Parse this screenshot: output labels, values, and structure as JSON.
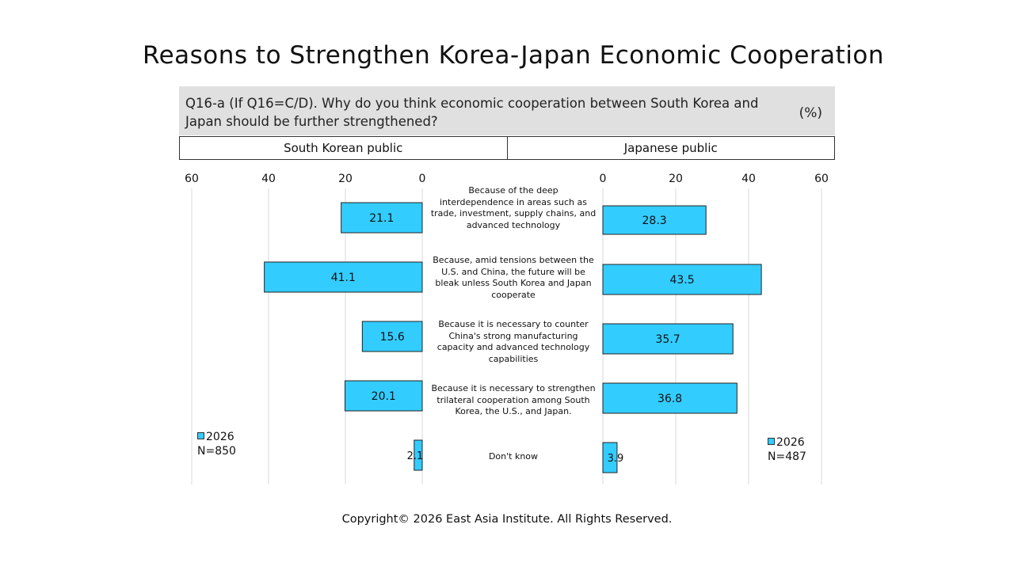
{
  "title": "Reasons to Strengthen Korea-Japan Economic Cooperation",
  "question": "Q16-a (If Q16=C/D). Why do you think economic cooperation between South Korea and Japan should be further strengthened?",
  "unit": "(%)",
  "left_header": "South Korean public",
  "right_header": "Japanese public",
  "footer": "Copyright© 2026 East Asia Institute. All Rights Reserved.",
  "colors": {
    "bar": "#33ccff",
    "bar_border": "#222222",
    "header_bg": "#e0e0e0",
    "grid": "#d9d9d9"
  },
  "legend_left": {
    "series": "2026",
    "n": "N=850"
  },
  "legend_right": {
    "series": "2026",
    "n": "N=487"
  },
  "chart_data": {
    "type": "bar",
    "orientation": "horizontal",
    "categories": [
      "Because of the deep interdependence in areas such as trade, investment, supply chains, and advanced technology",
      "Because, amid tensions between the U.S. and China, the future will be bleak unless South Korea and Japan cooperate",
      "Because it is necessary to counter China's strong manufacturing capacity and advanced technology capabilities",
      "Because it is necessary to strengthen trilateral cooperation among South Korea, the U.S., and Japan.",
      "Don't know"
    ],
    "panels": [
      {
        "name": "South Korean public",
        "series": "2026",
        "values": [
          21.1,
          41.1,
          15.6,
          20.1,
          2.1
        ],
        "xlim": [
          60,
          0
        ],
        "ticks": [
          60,
          40,
          20,
          0
        ]
      },
      {
        "name": "Japanese public",
        "series": "2026",
        "values": [
          28.3,
          43.5,
          35.7,
          36.8,
          3.9
        ],
        "xlim": [
          0,
          60
        ],
        "ticks": [
          0,
          20,
          40,
          60
        ]
      }
    ],
    "grid": true,
    "legend": "bottom-outside-each-panel"
  }
}
